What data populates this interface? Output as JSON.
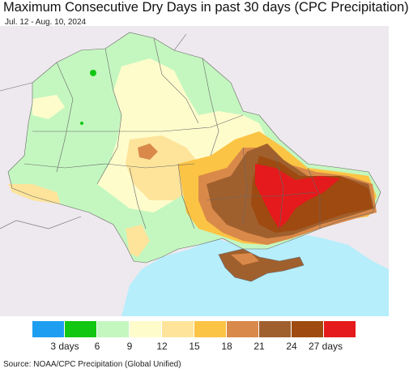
{
  "header": {
    "title": "Maximum Consecutive Dry Days in past 30 days (CPC Precipitation)",
    "subtitle": "Jul. 12 - Aug. 10, 2024"
  },
  "legend": {
    "colors": [
      "#1e9ef0",
      "#12c712",
      "#c4f7c0",
      "#fffccc",
      "#fde49a",
      "#fcc444",
      "#d9894a",
      "#a0602e",
      "#9e4a10",
      "#e41a1c"
    ],
    "labels": [
      "3 days",
      "6",
      "9",
      "12",
      "15",
      "18",
      "21",
      "24",
      "27 days"
    ]
  },
  "map_colors": {
    "sea": "#b6eefc",
    "background": "#eee9ee",
    "light_green": "#c4f7c0",
    "pale_yellow": "#fffccc",
    "light_orange": "#fde49a",
    "orange": "#fcc444",
    "tan": "#d9894a",
    "brown": "#a0602e",
    "dark_brown": "#9e4a10",
    "red": "#e41a1c",
    "green": "#12c712"
  },
  "source": "Source: NOAA/CPC Precipitation (Global Unified)"
}
